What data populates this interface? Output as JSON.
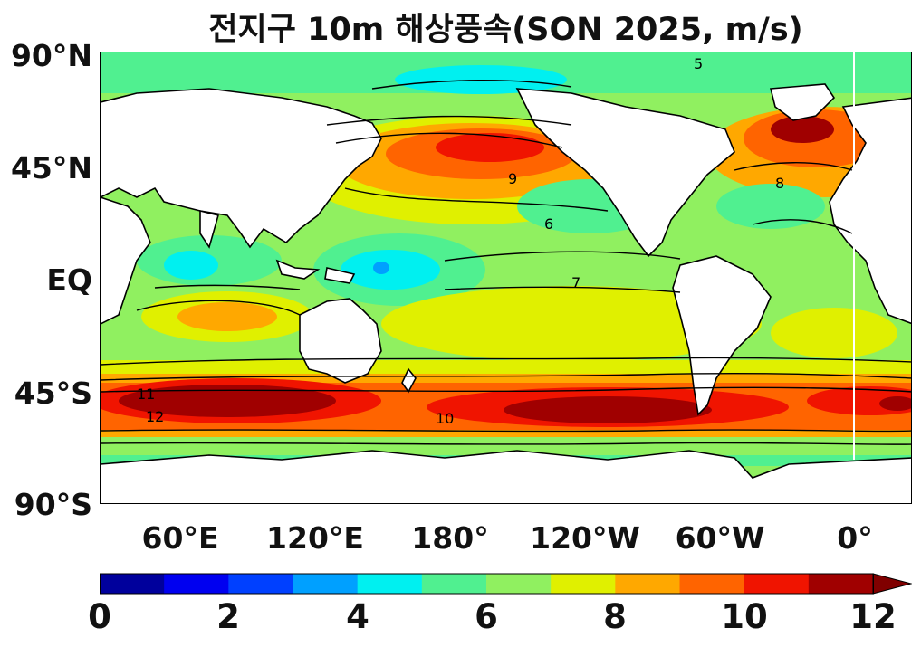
{
  "title": "전지구 10m 해상풍속(SON 2025, m/s)",
  "y_ticks": [
    "90°N",
    "45°N",
    "EQ",
    "45°S",
    "90°S"
  ],
  "x_ticks": [
    "60°E",
    "120°E",
    "180°",
    "120°W",
    "60°W",
    "0°"
  ],
  "colorbar": {
    "min": 0,
    "max": 12,
    "step": 1,
    "extend": "max",
    "tick_labels": [
      "0",
      "2",
      "4",
      "6",
      "8",
      "10",
      "12"
    ],
    "colors": [
      "#00009c",
      "#0000f0",
      "#0040ff",
      "#00a0ff",
      "#00f0f0",
      "#50f090",
      "#90f060",
      "#e0f000",
      "#ffa800",
      "#ff6400",
      "#f01400",
      "#a00000",
      "#800000"
    ]
  },
  "contour_labels": [
    "5",
    "6",
    "7",
    "8",
    "9",
    "10",
    "11",
    "12"
  ],
  "map": {
    "projection": "PlateCarree",
    "central_longitude": 180,
    "variable": "10m sea-surface wind speed",
    "units": "m/s",
    "land_color": "#ffffff",
    "coastlines": true
  }
}
